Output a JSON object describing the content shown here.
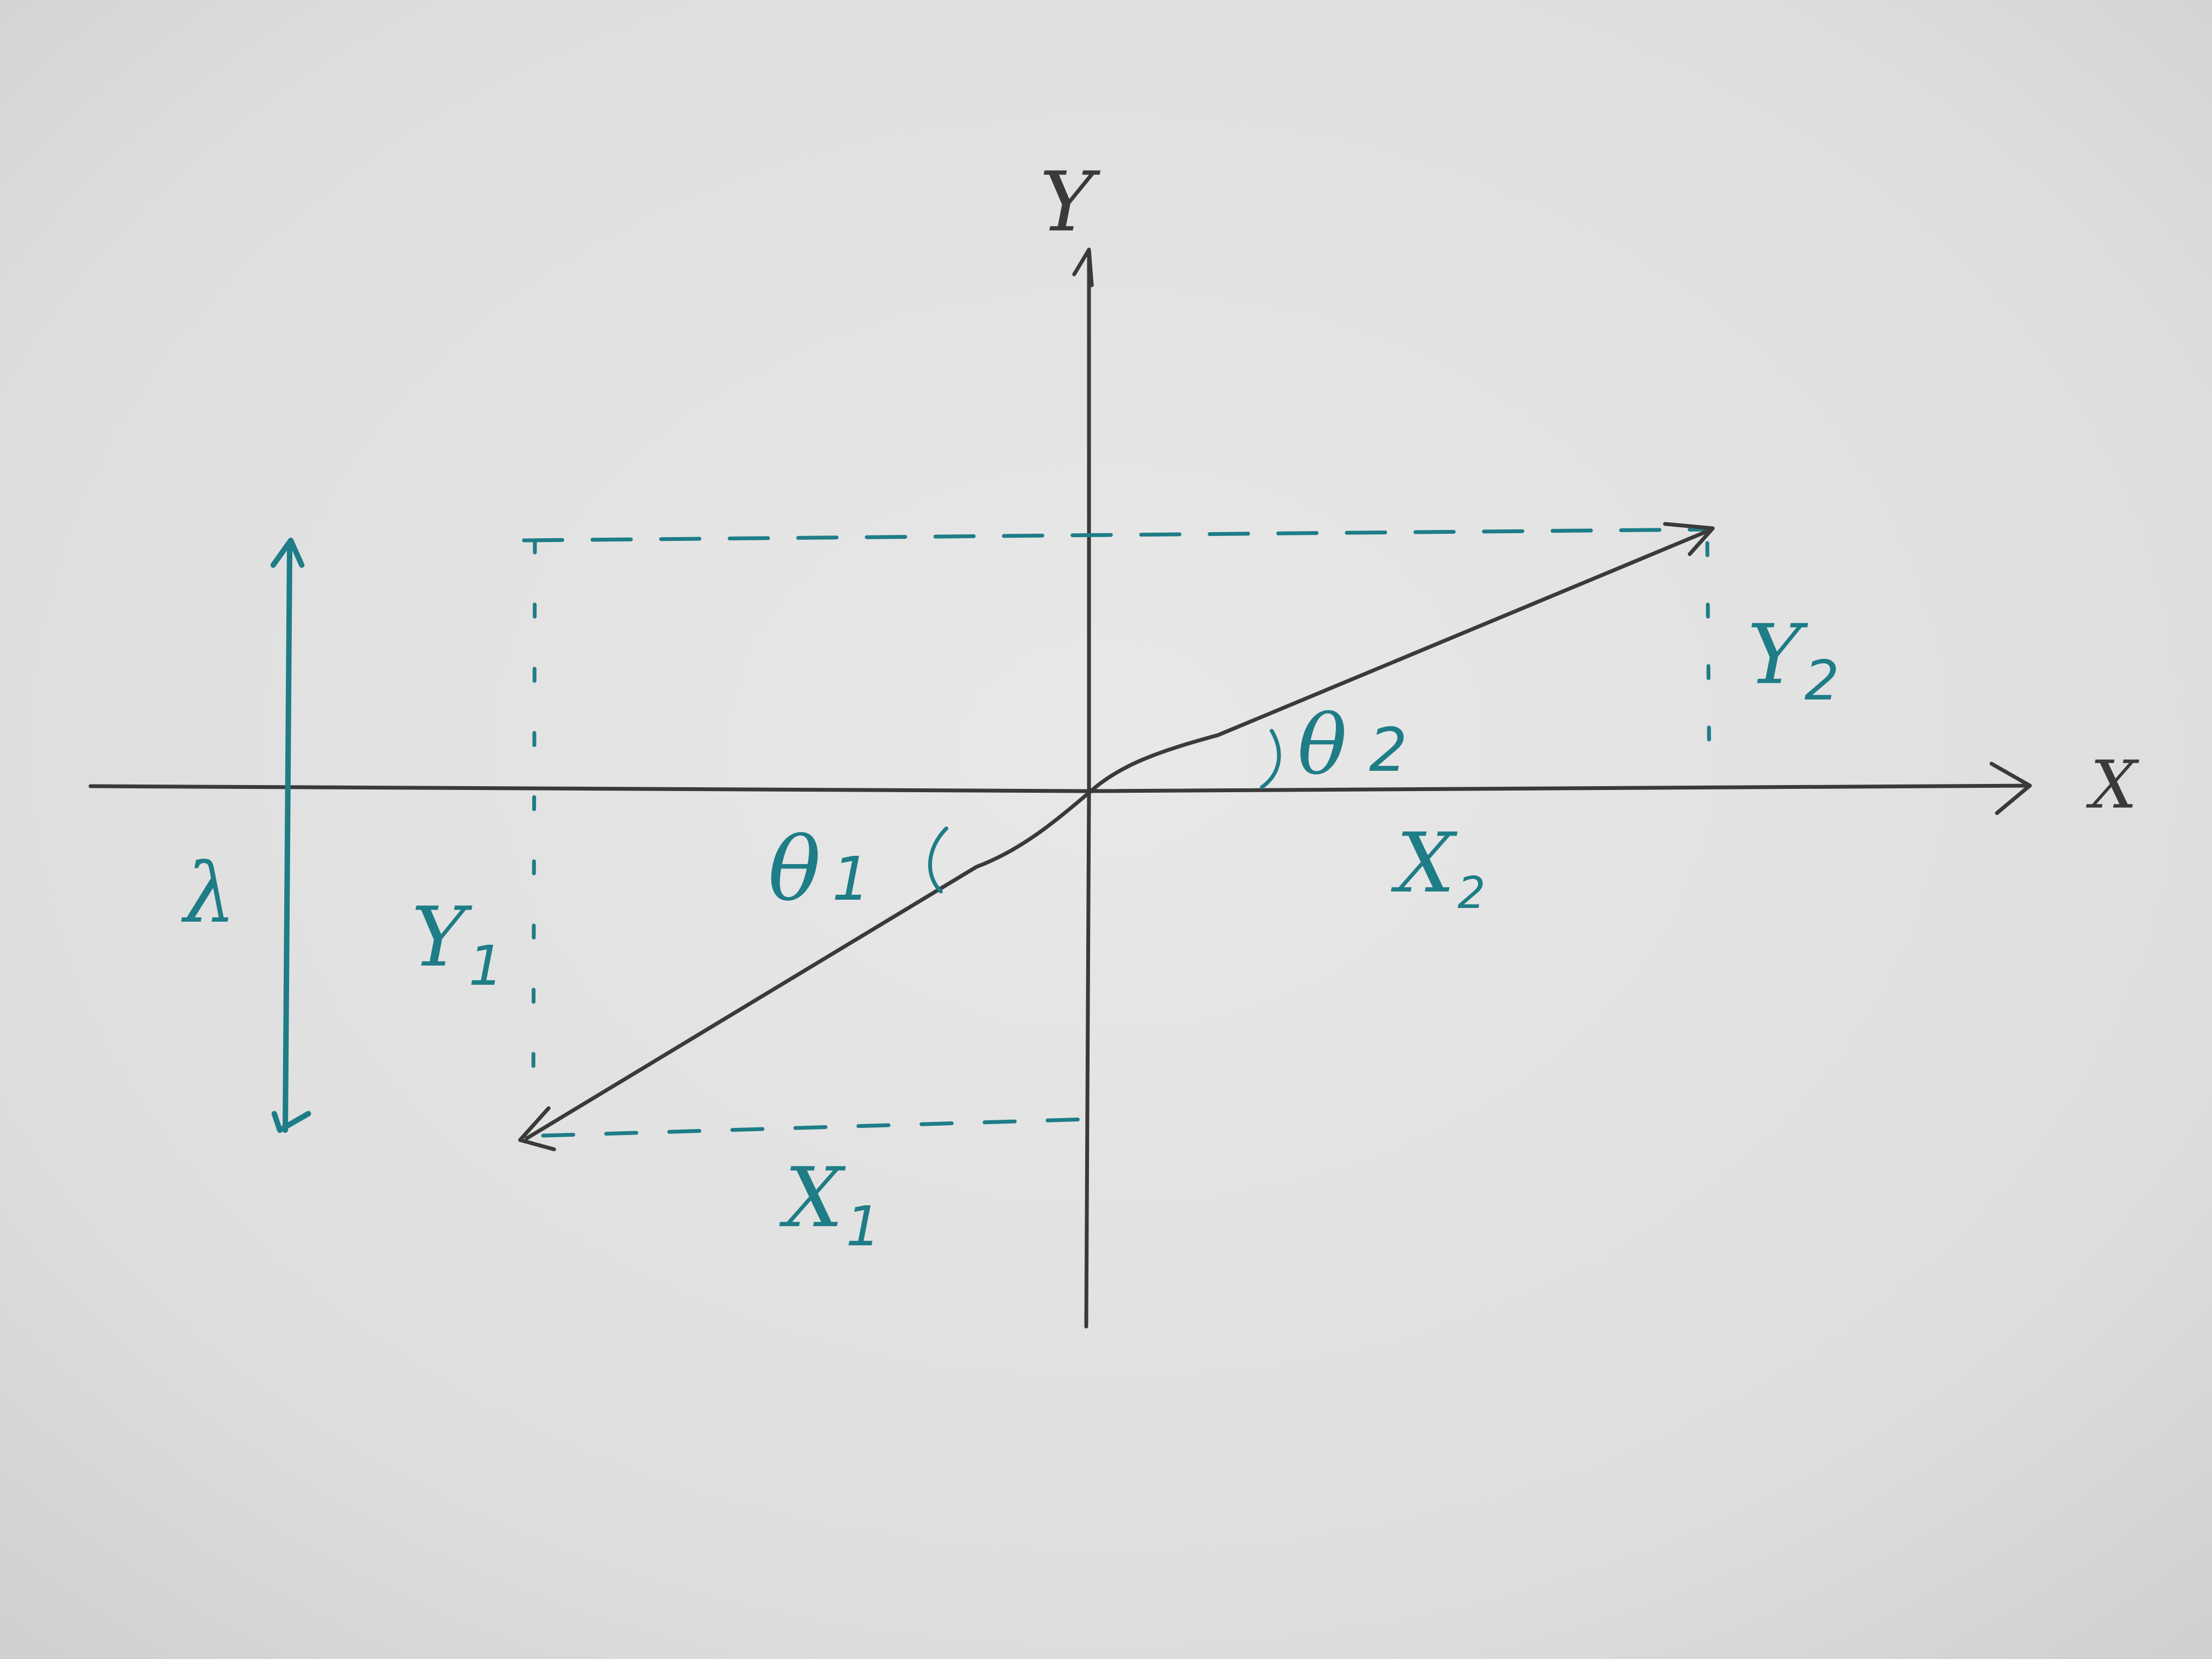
{
  "diagram": {
    "axes": {
      "x_label": "X",
      "y_label": "Y"
    },
    "vectors": [
      {
        "name": "vector-1",
        "angle_label": "θ",
        "angle_sub": "1",
        "x_component_label": "X",
        "x_component_sub": "1",
        "y_component_label": "Y",
        "y_component_sub": "1"
      },
      {
        "name": "vector-2",
        "angle_label": "θ",
        "angle_sub": "2",
        "x_component_label": "X",
        "x_component_sub": "2",
        "y_component_label": "Y",
        "y_component_sub": "2"
      }
    ],
    "scale_label": "λ"
  },
  "colors": {
    "paper": "#dedede",
    "pencil_ink": "#3a3a3a",
    "teal_ink": "#1e7d87"
  }
}
